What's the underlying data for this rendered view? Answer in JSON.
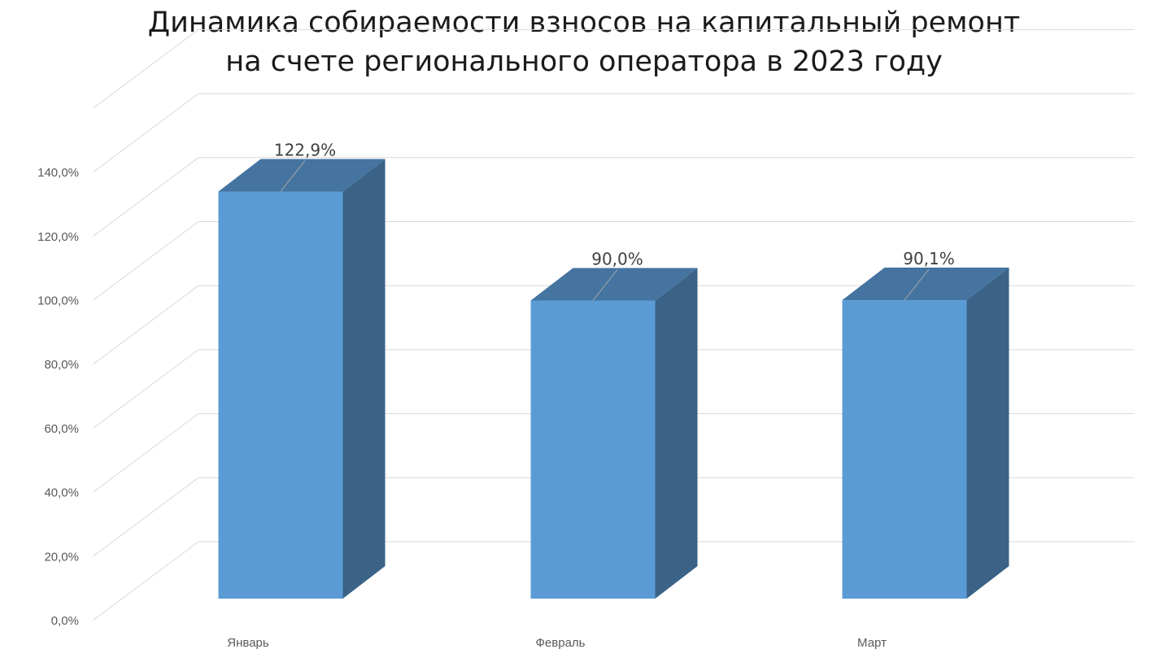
{
  "title": {
    "line1": "Динамика собираемости взносов на капитальный ремонт",
    "line2": "на счете регионального оператора в 2023 году"
  },
  "chart_data": {
    "type": "bar",
    "style": "3d-column",
    "title": "Динамика собираемости взносов на капитальный ремонт на счете регионального оператора в 2023 году",
    "categories": [
      "Январь",
      "Февраль",
      "Март"
    ],
    "values": [
      122.9,
      90.0,
      90.1
    ],
    "data_labels": [
      "122,9%",
      "90,0%",
      "90,1%"
    ],
    "ylim": [
      0,
      140
    ],
    "yticks": [
      0,
      20,
      40,
      60,
      80,
      100,
      120,
      140
    ],
    "ytick_labels": [
      "0,0%",
      "20,0%",
      "40,0%",
      "60,0%",
      "80,0%",
      "100,0%",
      "120,0%",
      "140,0%"
    ],
    "xlabel": "",
    "ylabel": "",
    "grid": true,
    "legend": "none",
    "colors": {
      "bar_front": "#5b9bd5",
      "bar_top": "#4574a0",
      "bar_side": "#3a6387",
      "grid": "#d9d9d9"
    }
  }
}
